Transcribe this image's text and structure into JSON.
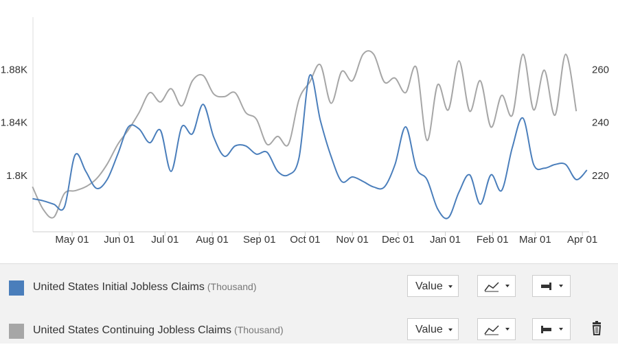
{
  "chart_data": {
    "type": "line",
    "xlim": [
      0,
      365
    ],
    "xticks": [
      {
        "value": 26,
        "label": "May 01"
      },
      {
        "value": 57,
        "label": "Jun 01"
      },
      {
        "value": 87,
        "label": "Jul 01"
      },
      {
        "value": 118,
        "label": "Aug 01"
      },
      {
        "value": 149,
        "label": "Sep 01"
      },
      {
        "value": 179,
        "label": "Oct 01"
      },
      {
        "value": 210,
        "label": "Nov 01"
      },
      {
        "value": 240,
        "label": "Dec 01"
      },
      {
        "value": 271,
        "label": "Jan 01"
      },
      {
        "value": 302,
        "label": "Feb 01"
      },
      {
        "value": 330,
        "label": "Mar 01"
      },
      {
        "value": 361,
        "label": "Apr 01"
      }
    ],
    "ylim": [
      1758,
      1920
    ],
    "yticks": [
      {
        "value": 1800,
        "label": "1.8K"
      },
      {
        "value": 1840,
        "label": "1.84K"
      },
      {
        "value": 1880,
        "label": "1.88K"
      }
    ],
    "y2lim": [
      199,
      280
    ],
    "y2ticks": [
      220,
      240,
      260
    ],
    "grid": false,
    "x": [
      0,
      7,
      14,
      21,
      28,
      35,
      42,
      49,
      56,
      63,
      70,
      77,
      84,
      91,
      98,
      105,
      112,
      119,
      126,
      133,
      140,
      147,
      154,
      161,
      168,
      175,
      182,
      189,
      196,
      203,
      210,
      217,
      224,
      231,
      238,
      245,
      252,
      259,
      266,
      273,
      280,
      287,
      294,
      301,
      308,
      315,
      322,
      329,
      336,
      343,
      350,
      357,
      364
    ],
    "series": [
      {
        "name": "United States Initial Jobless Claims",
        "unit": "(Thousand)",
        "color": "#4a7ebb",
        "axis": "y2",
        "values": [
          211.5,
          210.7,
          209.4,
          208.4,
          228,
          221.8,
          215.4,
          218.7,
          228.3,
          238.6,
          237.8,
          232.6,
          237.3,
          221.8,
          238.6,
          236,
          247.1,
          234.7,
          227.5,
          231.4,
          231.4,
          228.3,
          229,
          221.8,
          220.5,
          227,
          258,
          241,
          227.5,
          218,
          219.7,
          218,
          215.9,
          215.9,
          224.4,
          238.6,
          223,
          218.7,
          207.6,
          204.3,
          214,
          220.5,
          209.4,
          220.5,
          214.6,
          230.8,
          241.9,
          224.4,
          223,
          224.4,
          224.4,
          218.7,
          222.3
        ]
      },
      {
        "name": "United States Continuing Jobless Claims",
        "unit": "(Thousand)",
        "color": "#a6a6a6",
        "axis": "y",
        "values": [
          1792,
          1775,
          1769,
          1787,
          1789,
          1792,
          1798,
          1809,
          1824,
          1835,
          1848,
          1863,
          1856,
          1866,
          1853,
          1872,
          1876,
          1862,
          1860,
          1863,
          1848,
          1843,
          1824,
          1830,
          1824,
          1858,
          1871,
          1884,
          1855,
          1879,
          1872,
          1892,
          1892,
          1871,
          1874,
          1863,
          1882,
          1827,
          1869,
          1850,
          1887,
          1849,
          1872,
          1837,
          1861,
          1846,
          1892,
          1850,
          1880,
          1846,
          1892,
          1849,
          null
        ]
      }
    ]
  },
  "controls": [
    {
      "mode": "Value"
    },
    {
      "mode": "Value"
    }
  ]
}
